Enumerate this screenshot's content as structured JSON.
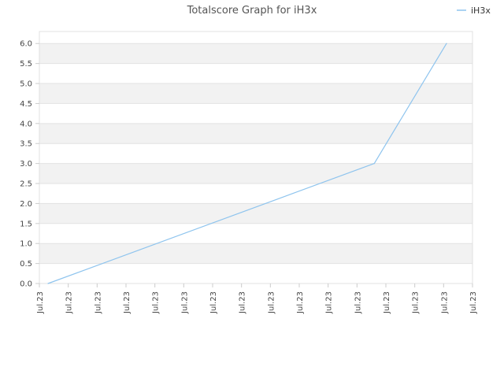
{
  "chart_data": {
    "type": "line",
    "title": "Totalscore Graph for iH3x",
    "xlabel": "",
    "ylabel": "",
    "ylim": [
      0,
      6.3
    ],
    "yticks": [
      "0.0",
      "0.5",
      "1.0",
      "1.5",
      "2.0",
      "2.5",
      "3.0",
      "3.5",
      "4.0",
      "4.5",
      "5.0",
      "5.5",
      "6.0"
    ],
    "xticks": [
      "Jul.23",
      "Jul.23",
      "Jul.23",
      "Jul.23",
      "Jul.23",
      "Jul.23",
      "Jul.23",
      "Jul.23",
      "Jul.23",
      "Jul.23",
      "Jul.23",
      "Jul.23",
      "Jul.23",
      "Jul.23",
      "Jul.23",
      "Jul.23"
    ],
    "grid": "horizontal alternating bands",
    "legend_position": "top-right",
    "series": [
      {
        "name": "iH3x",
        "color": "#8ec4ee",
        "x": [
          0.3,
          11.6,
          14.1
        ],
        "values": [
          0,
          3,
          6
        ]
      }
    ]
  }
}
